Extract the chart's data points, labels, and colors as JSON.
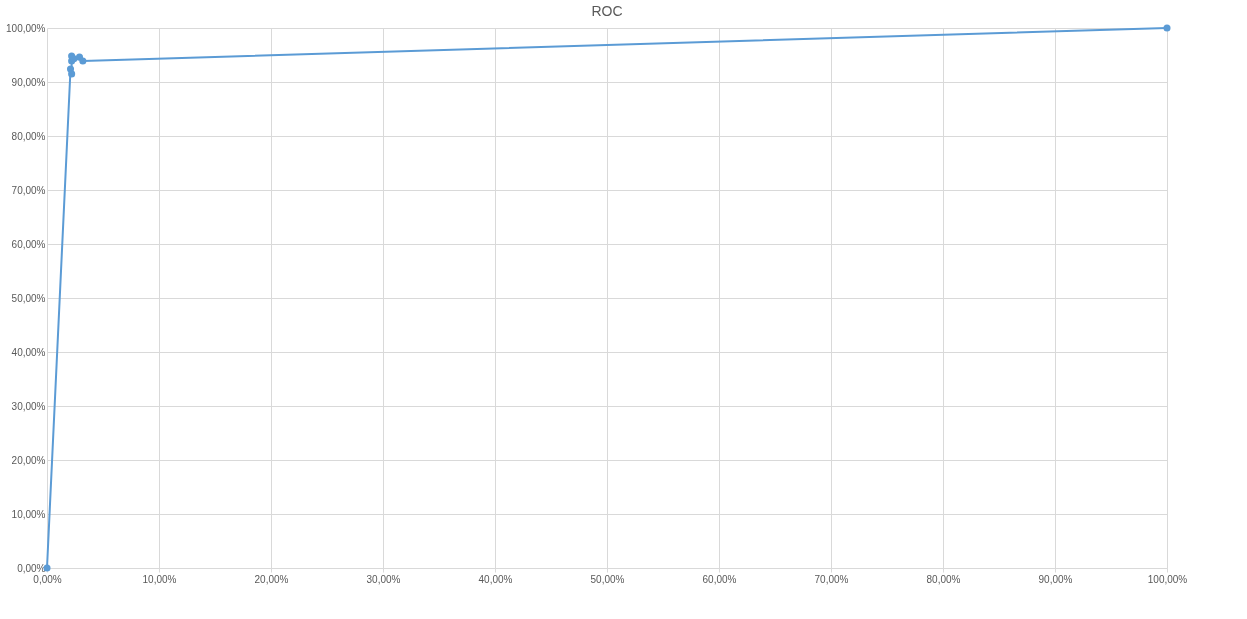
{
  "chart_data": {
    "type": "line",
    "title": "ROC",
    "x": [
      0,
      2.1,
      2.2,
      2.2,
      2.2,
      2.4,
      2.9,
      3.2,
      100
    ],
    "series": [
      {
        "color": "#5b9bd5",
        "values": [
          0,
          92.4,
          91.5,
          93.9,
          94.8,
          94.3,
          94.6,
          93.9,
          100
        ]
      }
    ],
    "xlim": [
      0,
      100
    ],
    "ylim": [
      0,
      100
    ],
    "xticks": [
      {
        "value": 0,
        "label": "0,00%"
      },
      {
        "value": 10,
        "label": "10,00%"
      },
      {
        "value": 20,
        "label": "20,00%"
      },
      {
        "value": 30,
        "label": "30,00%"
      },
      {
        "value": 40,
        "label": "40,00%"
      },
      {
        "value": 50,
        "label": "50,00%"
      },
      {
        "value": 60,
        "label": "60,00%"
      },
      {
        "value": 70,
        "label": "70,00%"
      },
      {
        "value": 80,
        "label": "80,00%"
      },
      {
        "value": 90,
        "label": "90,00%"
      },
      {
        "value": 100,
        "label": "100,00%"
      }
    ],
    "yticks": [
      {
        "value": 0,
        "label": "0,00%"
      },
      {
        "value": 10,
        "label": "10,00%"
      },
      {
        "value": 20,
        "label": "20,00%"
      },
      {
        "value": 30,
        "label": "30,00%"
      },
      {
        "value": 40,
        "label": "40,00%"
      },
      {
        "value": 50,
        "label": "50,00%"
      },
      {
        "value": 60,
        "label": "60,00%"
      },
      {
        "value": 70,
        "label": "70,00%"
      },
      {
        "value": 80,
        "label": "80,00%"
      },
      {
        "value": 90,
        "label": "90,00%"
      },
      {
        "value": 100,
        "label": "100,00%"
      }
    ],
    "grid": true,
    "marker": "circle"
  }
}
